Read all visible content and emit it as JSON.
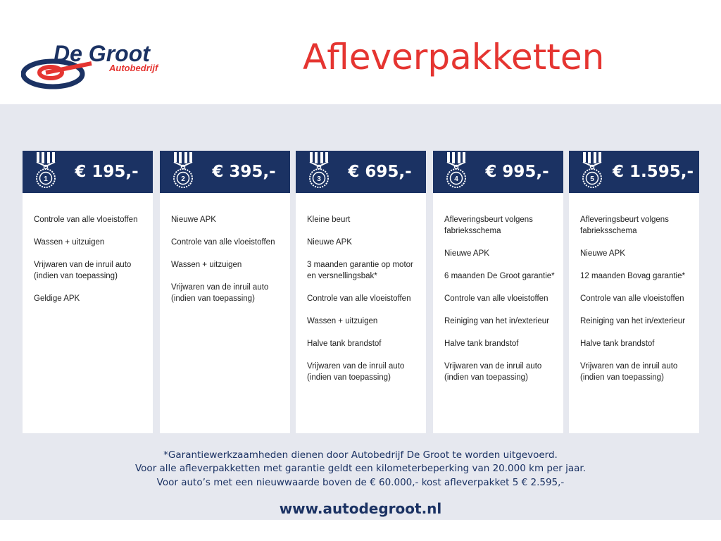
{
  "logo": {
    "name": "De Groot",
    "sub": "Autobedrijf"
  },
  "title": "Afleverpakketten",
  "colors": {
    "navy": "#1b3263",
    "red": "#e53531",
    "band": "#e6e8ef"
  },
  "packages": [
    {
      "number": "1",
      "price": "€ 195,-",
      "items": [
        "Controle van alle vloeistoffen",
        "Wassen + uitzuigen",
        "Vrijwaren van de inruil auto (indien van toepassing)",
        "Geldige APK"
      ]
    },
    {
      "number": "2",
      "price": "€ 395,-",
      "items": [
        "Nieuwe APK",
        "Controle van alle vloeistoffen",
        "Wassen + uitzuigen",
        "Vrijwaren van de inruil auto (indien van toepassing)"
      ]
    },
    {
      "number": "3",
      "price": "€ 695,-",
      "items": [
        "Kleine beurt",
        "Nieuwe APK",
        "3 maanden garantie op motor en versnellingsbak*",
        "Controle van alle vloeistoffen",
        "Wassen + uitzuigen",
        "Halve tank brandstof",
        "Vrijwaren van de inruil auto (indien van toepassing)"
      ]
    },
    {
      "number": "4",
      "price": "€ 995,-",
      "items": [
        "Afleveringsbeurt volgens fabrieksschema",
        "Nieuwe APK",
        "6 maanden De Groot garantie*",
        "Controle van alle vloeistoffen",
        "Reiniging van het in/exterieur",
        "Halve tank brandstof",
        "Vrijwaren van de inruil auto (indien van toepassing)"
      ]
    },
    {
      "number": "5",
      "price": "€ 1.595,-",
      "items": [
        "Afleveringsbeurt volgens fabrieksschema",
        "Nieuwe APK",
        "12 maanden Bovag garantie*",
        "Controle van alle vloeistoffen",
        "Reiniging van het in/exterieur",
        "Halve tank brandstof",
        "Vrijwaren van de inruil auto (indien van toepassing)"
      ]
    }
  ],
  "footer": {
    "lines": [
      "*Garantiewerkzaamheden dienen door Autobedrijf De Groot te worden uitgevoerd.",
      "Voor alle afleverpakketten met garantie geldt een kilometerbeperking van 20.000 km per jaar.",
      "Voor auto’s met een nieuwwaarde boven de € 60.000,- kost afleverpakket 5 € 2.595,-"
    ],
    "url": "www.autodegroot.nl"
  }
}
